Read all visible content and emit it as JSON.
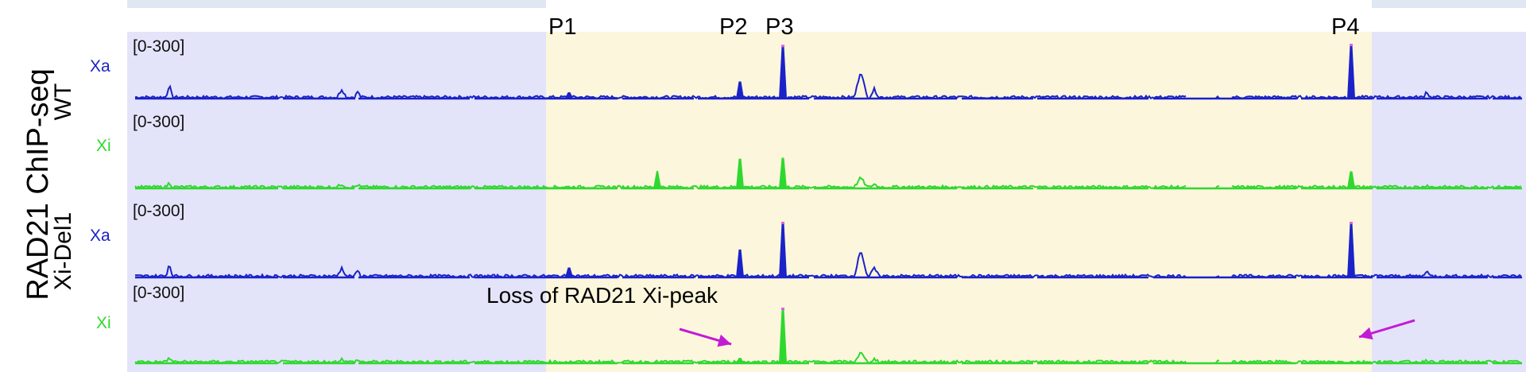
{
  "figure": {
    "assay_label": "RAD21 ChIP-seq",
    "conditions": [
      {
        "label": "WT",
        "tracks": [
          0,
          1
        ]
      },
      {
        "label": "Xi-Del1",
        "tracks": [
          2,
          3
        ]
      }
    ],
    "peaks": [
      "P1",
      "P2",
      "P3",
      "P4"
    ],
    "annotation": "Loss of RAD21 Xi-peak",
    "arrow_color": "#c21bd6",
    "region_colors": {
      "flank": "#e3e4f9",
      "center": "#fcf6dc"
    },
    "allele_colors": {
      "Xa": "#1a22c8",
      "Xi": "#2fd82f"
    }
  },
  "tracks": [
    {
      "allele": "Xa",
      "condition": "WT",
      "range": "[0-300]",
      "peaks": {
        "P1": 35,
        "P2": 95,
        "P3": 290,
        "P4": 295
      }
    },
    {
      "allele": "Xi",
      "condition": "WT",
      "range": "[0-300]",
      "peaks": {
        "P1": 5,
        "P2": 165,
        "P3": 170,
        "P4": 95
      }
    },
    {
      "allele": "Xa",
      "condition": "Xi-Del1",
      "range": "[0-300]",
      "peaks": {
        "P1": 55,
        "P2": 155,
        "P3": 300,
        "P4": 300
      }
    },
    {
      "allele": "Xi",
      "condition": "Xi-Del1",
      "range": "[0-300]",
      "peaks": {
        "P1": 5,
        "P2": 30,
        "P3": 300,
        "P4": 3
      }
    }
  ]
}
